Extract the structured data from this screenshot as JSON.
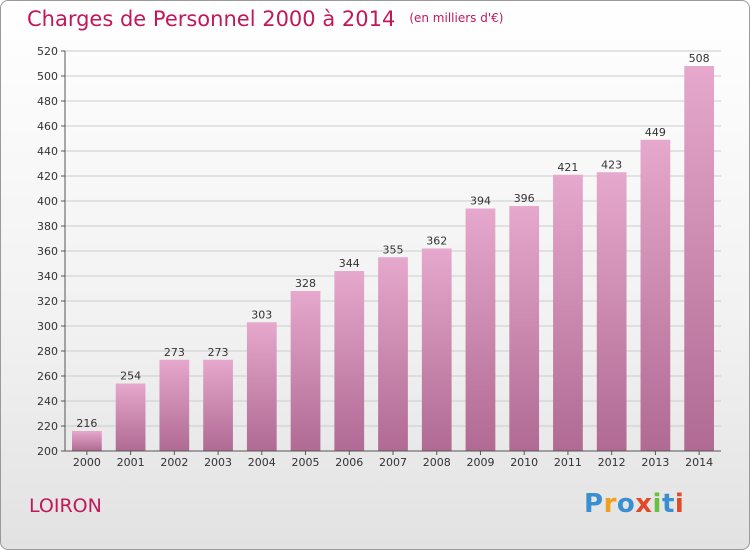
{
  "title": "Charges de Personnel 2000 à 2014",
  "subtitle": "(en milliers d'€)",
  "location": "LOIRON",
  "logo": {
    "letters": [
      "P",
      "r",
      "o",
      "x",
      "i",
      "t",
      "i"
    ],
    "colors": [
      "#3a8fd0",
      "#f0a020",
      "#3a8fd0",
      "#e04a2a",
      "#6cc040",
      "#3a8fd0",
      "#e04a2a"
    ]
  },
  "colors": {
    "accent": "#c2185b",
    "bar_top": "#e6a8cc",
    "bar_bottom": "#b06a93",
    "grid": "#cccccc"
  },
  "chart_data": {
    "type": "bar",
    "title": "Charges de Personnel 2000 à 2014",
    "subtitle": "(en milliers d'€)",
    "xlabel": "",
    "ylabel": "",
    "categories": [
      "2000",
      "2001",
      "2002",
      "2003",
      "2004",
      "2005",
      "2006",
      "2007",
      "2008",
      "2009",
      "2010",
      "2011",
      "2012",
      "2013",
      "2014"
    ],
    "values": [
      216,
      254,
      273,
      273,
      303,
      328,
      344,
      355,
      362,
      394,
      396,
      421,
      423,
      449,
      508
    ],
    "ylim": [
      200,
      520
    ],
    "yticks": [
      200,
      220,
      240,
      260,
      280,
      300,
      320,
      340,
      360,
      380,
      400,
      420,
      440,
      460,
      480,
      500,
      520
    ],
    "grid": true,
    "data_labels": true
  }
}
